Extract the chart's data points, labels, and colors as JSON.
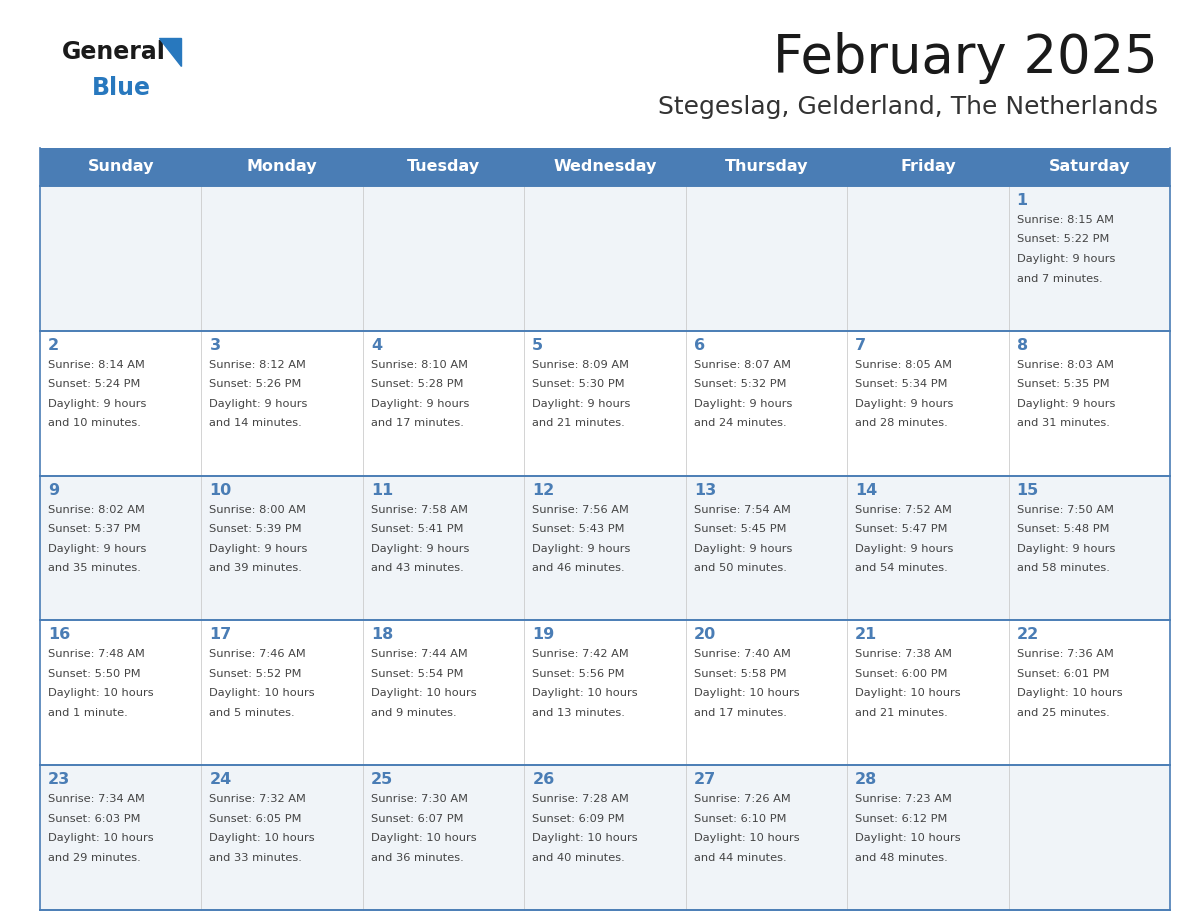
{
  "title": "February 2025",
  "subtitle": "Stegeslag, Gelderland, The Netherlands",
  "days_of_week": [
    "Sunday",
    "Monday",
    "Tuesday",
    "Wednesday",
    "Thursday",
    "Friday",
    "Saturday"
  ],
  "header_bg": "#4A7DB5",
  "header_text_color": "#FFFFFF",
  "row_bg_light": "#F0F4F8",
  "row_bg_white": "#FFFFFF",
  "cell_text_color": "#444444",
  "day_num_color": "#4A7DB5",
  "border_color": "#4A7DB5",
  "title_color": "#1a1a1a",
  "subtitle_color": "#333333",
  "logo_general_color": "#1a1a1a",
  "logo_blue_color": "#2878BE",
  "calendar": [
    [
      null,
      null,
      null,
      null,
      null,
      null,
      {
        "day": 1,
        "sunrise": "8:15 AM",
        "sunset": "5:22 PM",
        "daylight": "9 hours\nand 7 minutes."
      }
    ],
    [
      {
        "day": 2,
        "sunrise": "8:14 AM",
        "sunset": "5:24 PM",
        "daylight": "9 hours\nand 10 minutes."
      },
      {
        "day": 3,
        "sunrise": "8:12 AM",
        "sunset": "5:26 PM",
        "daylight": "9 hours\nand 14 minutes."
      },
      {
        "day": 4,
        "sunrise": "8:10 AM",
        "sunset": "5:28 PM",
        "daylight": "9 hours\nand 17 minutes."
      },
      {
        "day": 5,
        "sunrise": "8:09 AM",
        "sunset": "5:30 PM",
        "daylight": "9 hours\nand 21 minutes."
      },
      {
        "day": 6,
        "sunrise": "8:07 AM",
        "sunset": "5:32 PM",
        "daylight": "9 hours\nand 24 minutes."
      },
      {
        "day": 7,
        "sunrise": "8:05 AM",
        "sunset": "5:34 PM",
        "daylight": "9 hours\nand 28 minutes."
      },
      {
        "day": 8,
        "sunrise": "8:03 AM",
        "sunset": "5:35 PM",
        "daylight": "9 hours\nand 31 minutes."
      }
    ],
    [
      {
        "day": 9,
        "sunrise": "8:02 AM",
        "sunset": "5:37 PM",
        "daylight": "9 hours\nand 35 minutes."
      },
      {
        "day": 10,
        "sunrise": "8:00 AM",
        "sunset": "5:39 PM",
        "daylight": "9 hours\nand 39 minutes."
      },
      {
        "day": 11,
        "sunrise": "7:58 AM",
        "sunset": "5:41 PM",
        "daylight": "9 hours\nand 43 minutes."
      },
      {
        "day": 12,
        "sunrise": "7:56 AM",
        "sunset": "5:43 PM",
        "daylight": "9 hours\nand 46 minutes."
      },
      {
        "day": 13,
        "sunrise": "7:54 AM",
        "sunset": "5:45 PM",
        "daylight": "9 hours\nand 50 minutes."
      },
      {
        "day": 14,
        "sunrise": "7:52 AM",
        "sunset": "5:47 PM",
        "daylight": "9 hours\nand 54 minutes."
      },
      {
        "day": 15,
        "sunrise": "7:50 AM",
        "sunset": "5:48 PM",
        "daylight": "9 hours\nand 58 minutes."
      }
    ],
    [
      {
        "day": 16,
        "sunrise": "7:48 AM",
        "sunset": "5:50 PM",
        "daylight": "10 hours\nand 1 minute."
      },
      {
        "day": 17,
        "sunrise": "7:46 AM",
        "sunset": "5:52 PM",
        "daylight": "10 hours\nand 5 minutes."
      },
      {
        "day": 18,
        "sunrise": "7:44 AM",
        "sunset": "5:54 PM",
        "daylight": "10 hours\nand 9 minutes."
      },
      {
        "day": 19,
        "sunrise": "7:42 AM",
        "sunset": "5:56 PM",
        "daylight": "10 hours\nand 13 minutes."
      },
      {
        "day": 20,
        "sunrise": "7:40 AM",
        "sunset": "5:58 PM",
        "daylight": "10 hours\nand 17 minutes."
      },
      {
        "day": 21,
        "sunrise": "7:38 AM",
        "sunset": "6:00 PM",
        "daylight": "10 hours\nand 21 minutes."
      },
      {
        "day": 22,
        "sunrise": "7:36 AM",
        "sunset": "6:01 PM",
        "daylight": "10 hours\nand 25 minutes."
      }
    ],
    [
      {
        "day": 23,
        "sunrise": "7:34 AM",
        "sunset": "6:03 PM",
        "daylight": "10 hours\nand 29 minutes."
      },
      {
        "day": 24,
        "sunrise": "7:32 AM",
        "sunset": "6:05 PM",
        "daylight": "10 hours\nand 33 minutes."
      },
      {
        "day": 25,
        "sunrise": "7:30 AM",
        "sunset": "6:07 PM",
        "daylight": "10 hours\nand 36 minutes."
      },
      {
        "day": 26,
        "sunrise": "7:28 AM",
        "sunset": "6:09 PM",
        "daylight": "10 hours\nand 40 minutes."
      },
      {
        "day": 27,
        "sunrise": "7:26 AM",
        "sunset": "6:10 PM",
        "daylight": "10 hours\nand 44 minutes."
      },
      {
        "day": 28,
        "sunrise": "7:23 AM",
        "sunset": "6:12 PM",
        "daylight": "10 hours\nand 48 minutes."
      },
      null
    ]
  ],
  "figsize": [
    11.88,
    9.18
  ],
  "dpi": 100
}
